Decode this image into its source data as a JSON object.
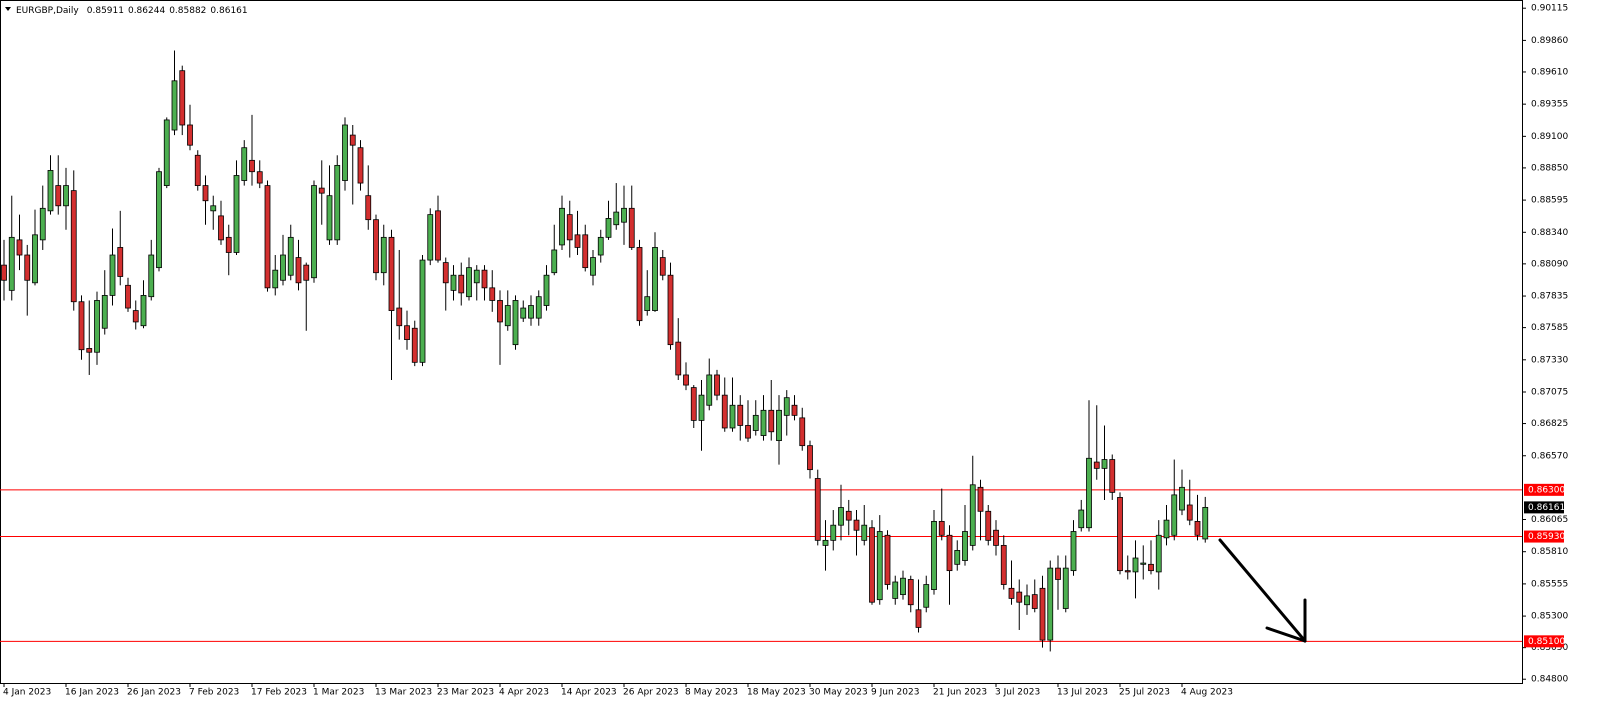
{
  "chart_data": {
    "type": "candlestick",
    "title": "EURGBP,Daily",
    "x": [
      "4 Jan 2023",
      null,
      null,
      null,
      null,
      null,
      null,
      null,
      "16 Jan 2023",
      null,
      null,
      null,
      null,
      null,
      null,
      null,
      "26 Jan 2023",
      null,
      null,
      null,
      null,
      null,
      null,
      null,
      "7 Feb 2023",
      null,
      null,
      null,
      null,
      null,
      null,
      null,
      "17 Feb 2023",
      null,
      null,
      null,
      null,
      null,
      null,
      null,
      "1 Mar 2023",
      null,
      null,
      null,
      null,
      null,
      null,
      null,
      "13 Mar 2023",
      null,
      null,
      null,
      null,
      null,
      null,
      null,
      "23 Mar 2023",
      null,
      null,
      null,
      null,
      null,
      null,
      null,
      "4 Apr 2023",
      null,
      null,
      null,
      null,
      null,
      null,
      null,
      "14 Apr 2023",
      null,
      null,
      null,
      null,
      null,
      null,
      null,
      "26 Apr 2023",
      null,
      null,
      null,
      null,
      null,
      null,
      null,
      "8 May 2023",
      null,
      null,
      null,
      null,
      null,
      null,
      null,
      "18 May 2023",
      null,
      null,
      null,
      null,
      null,
      null,
      null,
      "30 May 2023",
      null,
      null,
      null,
      null,
      null,
      null,
      null,
      "9 Jun 2023",
      null,
      null,
      null,
      null,
      null,
      null,
      null,
      "21 Jun 2023",
      null,
      null,
      null,
      null,
      null,
      null,
      null,
      "3 Jul 2023",
      null,
      null,
      null,
      null,
      null,
      null,
      null,
      "13 Jul 2023",
      null,
      null,
      null,
      null,
      null,
      null,
      null,
      "25 Jul 2023",
      null,
      null,
      null,
      null,
      null,
      null,
      null,
      "4 Aug 2023",
      null,
      null,
      null
    ],
    "open": [
      0.8808,
      0.8788,
      0.8828,
      0.8816,
      0.8794,
      0.8828,
      0.8851,
      0.8871,
      0.8855,
      0.8867,
      0.8779,
      0.8742,
      0.8739,
      0.8758,
      0.8784,
      0.8822,
      0.8792,
      0.8772,
      0.876,
      0.8783,
      0.8806,
      0.8871,
      0.8915,
      0.8962,
      0.8919,
      0.8895,
      0.8871,
      0.8851,
      0.8847,
      0.883,
      0.8818,
      0.8875,
      0.8891,
      0.8882,
      0.8871,
      0.879,
      0.8796,
      0.88,
      0.8814,
      0.8808,
      0.8798,
      0.8869,
      0.8828,
      0.8828,
      0.8875,
      0.8911,
      0.8901,
      0.8863,
      0.8844,
      0.8802,
      0.883,
      0.8774,
      0.876,
      0.8758,
      0.8731,
      0.8812,
      0.8851,
      0.881,
      0.8788,
      0.88,
      0.8783,
      0.8794,
      0.8804,
      0.879,
      0.878,
      0.876,
      0.8745,
      0.8766,
      0.8766,
      0.8766,
      0.8776,
      0.8802,
      0.8824,
      0.8848,
      0.8832,
      0.8832,
      0.88,
      0.8816,
      0.883,
      0.884,
      0.8842,
      0.8853,
      0.8822,
      0.8772,
      0.8772,
      0.8814,
      0.88,
      0.8747,
      0.8721,
      0.8711,
      0.8685,
      0.8697,
      0.8721,
      0.8705,
      0.8679,
      0.8697,
      0.8681,
      0.8677,
      0.8673,
      0.8693,
      0.8669,
      0.8689,
      0.8697,
      0.8687,
      0.8665,
      0.8639,
      0.8586,
      0.859,
      0.8602,
      0.8613,
      0.8606,
      0.859,
      0.86,
      0.8543,
      0.8594,
      0.8544,
      0.8547,
      0.8559,
      0.8535,
      0.8537,
      0.8551,
      0.8605,
      0.8594,
      0.8571,
      0.8574,
      0.8586,
      0.8632,
      0.8613,
      0.8598,
      0.8586,
      0.8552,
      0.8549,
      0.8539,
      0.8547,
      0.8552,
      0.8511,
      0.8568,
      0.8536,
      0.8566,
      0.86,
      0.86,
      0.8652,
      0.8647,
      0.8654,
      0.8624,
      0.8566,
      0.8565,
      0.8571,
      0.8571,
      0.8565,
      0.8592,
      0.8594,
      0.8614,
      0.8618,
      0.8605,
      0.85911
    ],
    "high": [
      0.8828,
      0.8863,
      0.8848,
      0.8824,
      0.8852,
      0.8871,
      0.8895,
      0.8895,
      0.8885,
      0.8883,
      0.8784,
      0.878,
      0.8787,
      0.8804,
      0.8837,
      0.8851,
      0.8798,
      0.878,
      0.8796,
      0.8828,
      0.8885,
      0.8925,
      0.8978,
      0.8966,
      0.8935,
      0.8899,
      0.8879,
      0.8863,
      0.8859,
      0.884,
      0.8891,
      0.8907,
      0.8927,
      0.8891,
      0.8875,
      0.8816,
      0.8832,
      0.884,
      0.8828,
      0.881,
      0.8875,
      0.8891,
      0.8887,
      0.8895,
      0.8925,
      0.8919,
      0.8907,
      0.8887,
      0.8848,
      0.884,
      0.8836,
      0.882,
      0.8772,
      0.8764,
      0.8816,
      0.8853,
      0.8863,
      0.8814,
      0.8808,
      0.881,
      0.8814,
      0.8808,
      0.8808,
      0.8804,
      0.8788,
      0.8788,
      0.8784,
      0.878,
      0.8784,
      0.8788,
      0.8808,
      0.884,
      0.8863,
      0.8859,
      0.8851,
      0.884,
      0.882,
      0.8836,
      0.8859,
      0.8873,
      0.8871,
      0.8871,
      0.8828,
      0.8804,
      0.8834,
      0.882,
      0.881,
      0.8766,
      0.8731,
      0.8713,
      0.8717,
      0.8734,
      0.8725,
      0.8719,
      0.8719,
      0.8705,
      0.8701,
      0.8701,
      0.8705,
      0.8717,
      0.8705,
      0.8709,
      0.8705,
      0.8695,
      0.8669,
      0.8646,
      0.8606,
      0.8614,
      0.8634,
      0.8622,
      0.8614,
      0.8618,
      0.8606,
      0.861,
      0.8598,
      0.8562,
      0.8566,
      0.8562,
      0.8559,
      0.8562,
      0.8614,
      0.8631,
      0.8602,
      0.859,
      0.8618,
      0.8657,
      0.8638,
      0.8618,
      0.8606,
      0.8594,
      0.8574,
      0.8559,
      0.8555,
      0.8559,
      0.8562,
      0.8574,
      0.8578,
      0.8578,
      0.8606,
      0.8622,
      0.8701,
      0.8697,
      0.8681,
      0.8658,
      0.8628,
      0.8578,
      0.859,
      0.8586,
      0.859,
      0.8606,
      0.8618,
      0.8654,
      0.8646,
      0.8638,
      0.8626,
      0.86244
    ],
    "low": [
      0.878,
      0.878,
      0.8804,
      0.8768,
      0.8792,
      0.882,
      0.8848,
      0.8848,
      0.8836,
      0.8772,
      0.8733,
      0.8721,
      0.8729,
      0.8753,
      0.8776,
      0.8792,
      0.8771,
      0.8757,
      0.8758,
      0.878,
      0.8803,
      0.8869,
      0.8911,
      0.8911,
      0.8899,
      0.8867,
      0.884,
      0.8836,
      0.8824,
      0.88,
      0.8816,
      0.8871,
      0.8871,
      0.8869,
      0.8787,
      0.8784,
      0.8792,
      0.8796,
      0.8788,
      0.8756,
      0.8794,
      0.884,
      0.8824,
      0.8824,
      0.8867,
      0.8856,
      0.8867,
      0.8836,
      0.8796,
      0.8792,
      0.8717,
      0.8749,
      0.8741,
      0.8728,
      0.8728,
      0.8808,
      0.881,
      0.8772,
      0.878,
      0.8776,
      0.878,
      0.878,
      0.878,
      0.8771,
      0.8729,
      0.8756,
      0.8741,
      0.8763,
      0.876,
      0.876,
      0.8772,
      0.88,
      0.882,
      0.8814,
      0.8816,
      0.8803,
      0.8792,
      0.881,
      0.8828,
      0.8836,
      0.8824,
      0.882,
      0.876,
      0.8768,
      0.8771,
      0.8796,
      0.8741,
      0.8717,
      0.8709,
      0.8679,
      0.8661,
      0.8693,
      0.8701,
      0.8676,
      0.8676,
      0.8669,
      0.8668,
      0.8673,
      0.8669,
      0.8669,
      0.865,
      0.8673,
      0.8685,
      0.8661,
      0.8639,
      0.8586,
      0.8566,
      0.8582,
      0.859,
      0.8594,
      0.8578,
      0.8586,
      0.8539,
      0.8539,
      0.8551,
      0.8539,
      0.8543,
      0.8533,
      0.8517,
      0.8533,
      0.8547,
      0.859,
      0.8539,
      0.8566,
      0.857,
      0.8582,
      0.859,
      0.8586,
      0.8578,
      0.8551,
      0.8539,
      0.8519,
      0.8531,
      0.8533,
      0.8505,
      0.8502,
      0.8535,
      0.8533,
      0.8562,
      0.8597,
      0.8597,
      0.8638,
      0.8622,
      0.8622,
      0.8563,
      0.8559,
      0.8544,
      0.8559,
      0.8563,
      0.8551,
      0.8586,
      0.859,
      0.861,
      0.8602,
      0.859,
      0.85882
    ],
    "close": [
      0.8796,
      0.883,
      0.8816,
      0.8796,
      0.8832,
      0.8853,
      0.8883,
      0.8855,
      0.8871,
      0.8779,
      0.8741,
      0.8739,
      0.878,
      0.8784,
      0.8816,
      0.8799,
      0.8774,
      0.8763,
      0.8784,
      0.8816,
      0.8882,
      0.8923,
      0.8954,
      0.8919,
      0.8903,
      0.8871,
      0.8859,
      0.8855,
      0.8828,
      0.8818,
      0.8879,
      0.8901,
      0.8882,
      0.8873,
      0.879,
      0.8804,
      0.8816,
      0.883,
      0.8794,
      0.8796,
      0.8871,
      0.8865,
      0.8863,
      0.8887,
      0.8919,
      0.8903,
      0.8873,
      0.8844,
      0.8802,
      0.883,
      0.8772,
      0.876,
      0.8749,
      0.8731,
      0.8812,
      0.8848,
      0.8812,
      0.8794,
      0.88,
      0.8786,
      0.8806,
      0.8804,
      0.879,
      0.878,
      0.8763,
      0.8776,
      0.878,
      0.8774,
      0.8776,
      0.8783,
      0.88,
      0.882,
      0.8853,
      0.8828,
      0.8822,
      0.8806,
      0.8814,
      0.883,
      0.8845,
      0.885,
      0.8853,
      0.8822,
      0.8764,
      0.8783,
      0.8822,
      0.88,
      0.8745,
      0.8721,
      0.8713,
      0.8685,
      0.8705,
      0.8721,
      0.8705,
      0.8679,
      0.8697,
      0.8681,
      0.8671,
      0.8689,
      0.8693,
      0.8676,
      0.8693,
      0.8703,
      0.8689,
      0.8665,
      0.8646,
      0.859,
      0.859,
      0.8602,
      0.8616,
      0.8606,
      0.8598,
      0.8602,
      0.8541,
      0.8597,
      0.8555,
      0.8557,
      0.856,
      0.8539,
      0.8521,
      0.8555,
      0.8605,
      0.8594,
      0.8566,
      0.8582,
      0.8597,
      0.8634,
      0.8613,
      0.859,
      0.8586,
      0.8555,
      0.8544,
      0.8541,
      0.8546,
      0.8536,
      0.8511,
      0.8568,
      0.8559,
      0.8568,
      0.8597,
      0.8614,
      0.8655,
      0.8647,
      0.8654,
      0.8628,
      0.8566,
      0.8565,
      0.8576,
      0.8572,
      0.8566,
      0.8594,
      0.8606,
      0.8626,
      0.8632,
      0.8606,
      0.8594,
      0.86161
    ],
    "up_color": "#4caf50",
    "down_color": "#d32f2f",
    "wick_color": "#000000",
    "ylim": [
      0.8477,
      0.9018
    ],
    "yticks": [
      0.90115,
      {
        "value": 0.8986,
        "label": "0.89860"
      },
      {
        "value": 0.8961,
        "label": "0.89610"
      },
      0.89355,
      {
        "value": 0.891,
        "label": "0.89100"
      },
      {
        "value": 0.8885,
        "label": "0.88850"
      },
      0.88595,
      {
        "value": 0.8834,
        "label": "0.88340"
      },
      {
        "value": 0.8809,
        "label": "0.88090"
      },
      0.87835,
      0.87585,
      {
        "value": 0.8733,
        "label": "0.87330"
      },
      0.87075,
      0.86825,
      {
        "value": 0.8657,
        "label": "0.86570"
      },
      0.86065,
      {
        "value": 0.8581,
        "label": "0.85810"
      },
      0.85555,
      {
        "value": 0.853,
        "label": "0.85300"
      },
      {
        "value": 0.8505,
        "label": "0.85050"
      },
      {
        "value": 0.848,
        "label": "0.84800"
      }
    ],
    "hlines": [
      {
        "value": 0.863,
        "label": "0.86300"
      },
      {
        "value": 0.8593,
        "label": "0.85930"
      },
      {
        "value": 0.851,
        "label": "0.85100"
      }
    ],
    "hline_color": "#ff0000"
  }
}
